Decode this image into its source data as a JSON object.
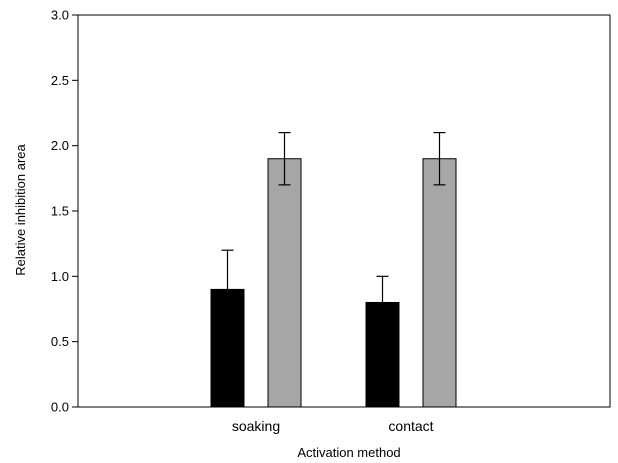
{
  "chart_data": {
    "type": "bar",
    "title": "",
    "xlabel": "Activation method",
    "ylabel": "Relative inhibition area",
    "categories": [
      "soaking",
      "contact"
    ],
    "ylim": [
      0,
      3.0
    ],
    "yticks": [
      "0.0",
      "0.5",
      "1.0",
      "1.5",
      "2.0",
      "2.5",
      "3.0"
    ],
    "grid": false,
    "legend": "none",
    "series": [
      {
        "values": [
          0.9,
          0.8
        ],
        "errors": [
          0.3,
          0.2
        ],
        "color": "#000000"
      },
      {
        "values": [
          1.9,
          1.9
        ],
        "errors": [
          0.2,
          0.2
        ],
        "color": "#a6a6a6"
      }
    ]
  }
}
